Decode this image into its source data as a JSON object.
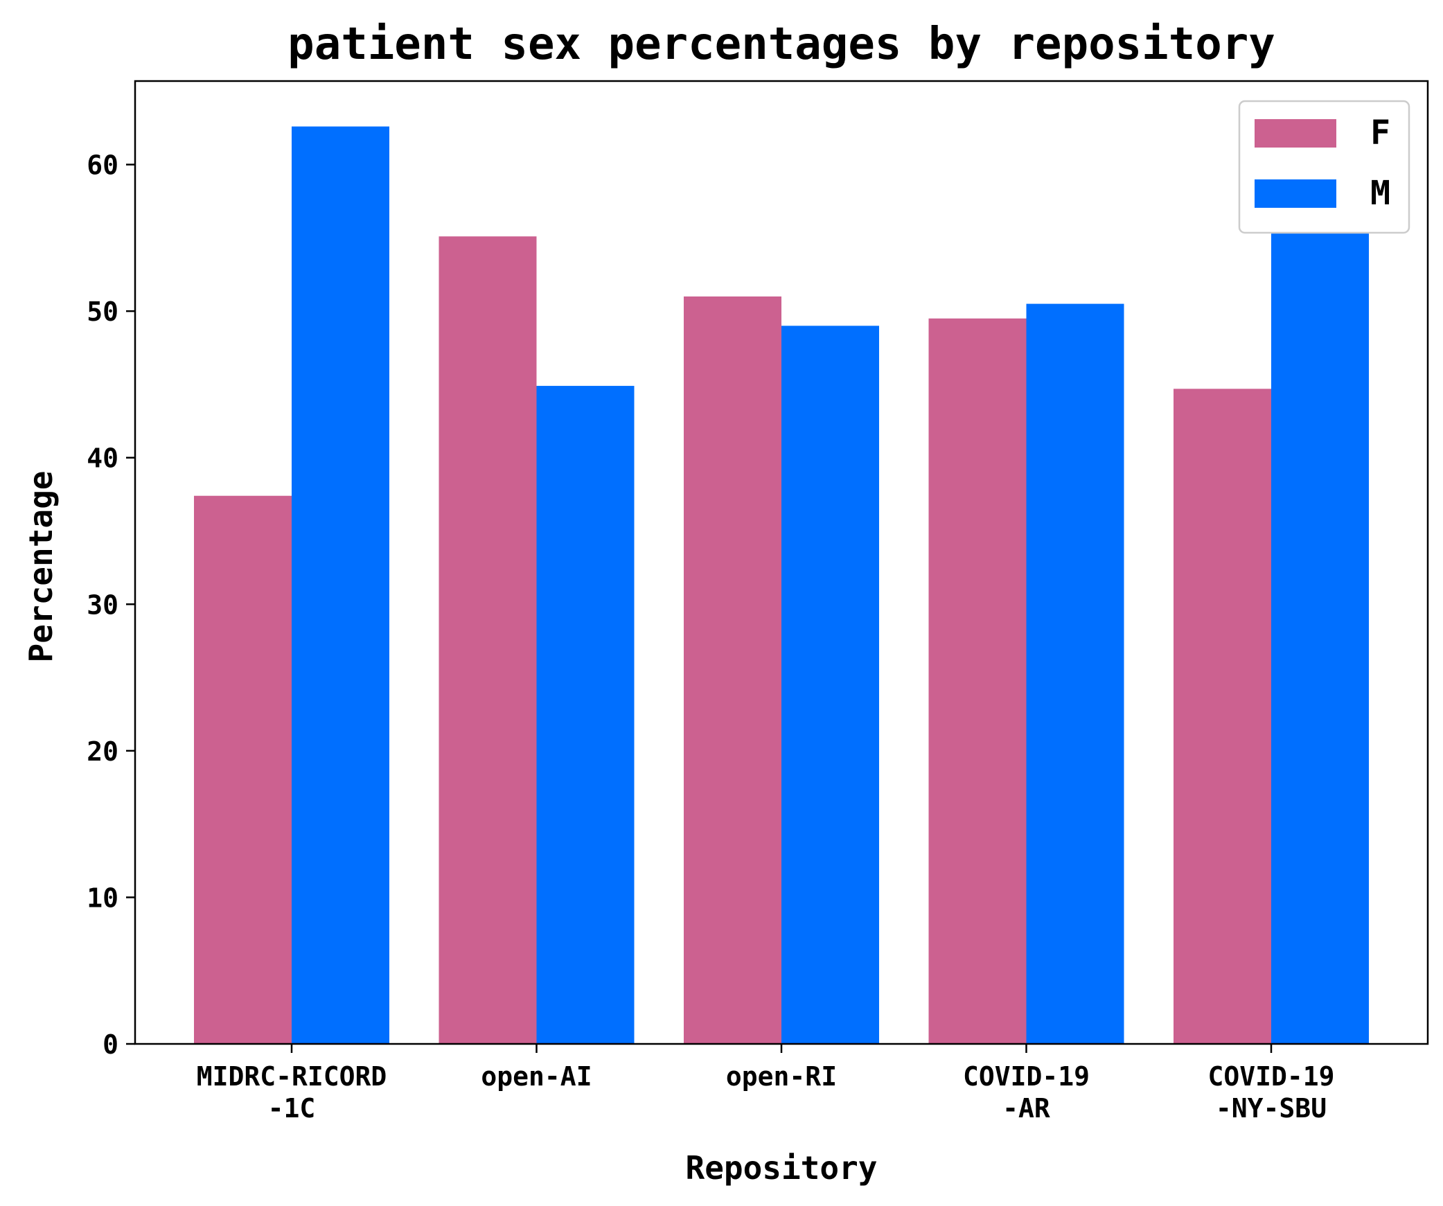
{
  "chart_data": {
    "type": "bar",
    "title": "patient sex percentages by repository",
    "xlabel": "Repository",
    "ylabel": "Percentage",
    "categories": [
      [
        "MIDRC-RICORD",
        "-1C"
      ],
      [
        "open-AI"
      ],
      [
        "open-RI"
      ],
      [
        "COVID-19",
        "-AR"
      ],
      [
        "COVID-19",
        "-NY-SBU"
      ]
    ],
    "series": [
      {
        "name": "F",
        "color": "#cc6190",
        "values": [
          37.4,
          55.1,
          51.0,
          49.5,
          44.7
        ]
      },
      {
        "name": "M",
        "color": "#006fff",
        "values": [
          62.6,
          44.9,
          49.0,
          50.5,
          55.3
        ]
      }
    ],
    "yticks": [
      0,
      10,
      20,
      30,
      40,
      50,
      60
    ],
    "ylim": [
      0,
      65.7
    ],
    "grid": false,
    "legend": "top-right"
  }
}
